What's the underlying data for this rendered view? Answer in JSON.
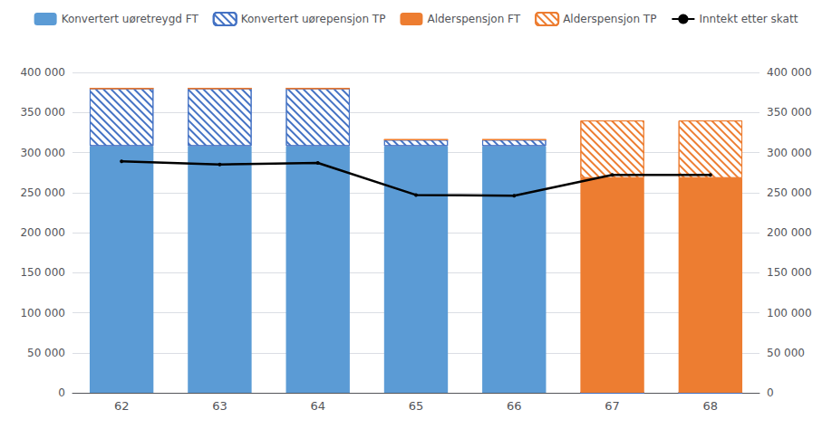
{
  "chart_data": {
    "type": "bar",
    "categories": [
      "62",
      "63",
      "64",
      "65",
      "66",
      "67",
      "68"
    ],
    "stacked": true,
    "grid": true,
    "legend": "top",
    "series": [
      {
        "name": "Konvertert uøretreygd FT",
        "type": "bar",
        "color": "#5B9BD5",
        "values": [
          308000,
          308000,
          308000,
          308000,
          308000,
          0,
          0
        ]
      },
      {
        "name": "Konvertert uørepensjon TP",
        "type": "bar",
        "color": "#4472C4",
        "values": [
          72000,
          72000,
          72000,
          8000,
          8000,
          0,
          0
        ]
      },
      {
        "name": "Alderspensjon FT",
        "type": "bar",
        "color": "#ED7D31",
        "values": [
          0,
          0,
          0,
          0,
          0,
          268000,
          268000
        ]
      },
      {
        "name": "Alderspensjon TP",
        "type": "bar",
        "color": "#ED7D31",
        "values": [
          0,
          0,
          0,
          0,
          0,
          72000,
          72000
        ]
      },
      {
        "name": "Inntekt etter skatt",
        "type": "line",
        "color": "#000000",
        "axis": "y2",
        "values": [
          289000,
          285000,
          287000,
          247000,
          246000,
          272000,
          272000
        ]
      }
    ],
    "ylim": [
      0,
      400000
    ],
    "yticks": [
      0,
      {
        "value": 50000,
        "label": "50 000"
      },
      {
        "value": 100000,
        "label": "100 000"
      },
      {
        "value": 150000,
        "label": "150 000"
      },
      {
        "value": 200000,
        "label": "200 000"
      },
      {
        "value": 250000,
        "label": "250 000"
      },
      {
        "value": 300000,
        "label": "300 000"
      },
      {
        "value": 350000,
        "label": "350 000"
      },
      {
        "value": 400000,
        "label": "400 000"
      }
    ],
    "y2lim": [
      0,
      400000
    ],
    "y2ticks": [
      0,
      {
        "value": 50000,
        "label": "50 000"
      },
      {
        "value": 100000,
        "label": "100 000"
      },
      {
        "value": 150000,
        "label": "150 000"
      },
      {
        "value": 200000,
        "label": "200 000"
      },
      {
        "value": 250000,
        "label": "250 000"
      },
      {
        "value": 300000,
        "label": "300 000"
      },
      {
        "value": 350000,
        "label": "350 000"
      },
      {
        "value": 400000,
        "label": "400 000"
      }
    ]
  }
}
